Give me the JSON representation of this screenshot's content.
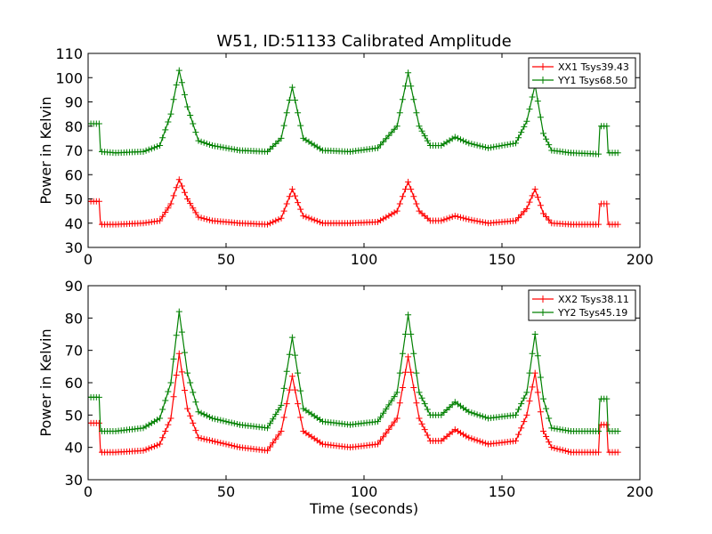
{
  "chart_data": [
    {
      "type": "line",
      "title": "W51, ID:51133 Calibrated Amplitude",
      "xlabel": "",
      "ylabel": "Power in Kelvin",
      "xlim": [
        0,
        200
      ],
      "ylim": [
        30,
        110
      ],
      "xticks": [
        "0",
        "50",
        "100",
        "150",
        "200"
      ],
      "yticks": [
        "30",
        "40",
        "50",
        "60",
        "70",
        "80",
        "90",
        "100",
        "110"
      ],
      "legend_position": "top-right",
      "grid": false,
      "marker": "plus",
      "series": [
        {
          "name": "XX1 Tsys39.43",
          "color": "#ff0000",
          "x": [
            0,
            4,
            4.5,
            10,
            20,
            26,
            30,
            33,
            36,
            40,
            45,
            55,
            65,
            70,
            74,
            78,
            85,
            95,
            105,
            112,
            116,
            120,
            124,
            128,
            133,
            138,
            145,
            155,
            159,
            162,
            165,
            168,
            175,
            185,
            185.5,
            186,
            188,
            188.5,
            192
          ],
          "y": [
            49,
            49,
            39.5,
            39.5,
            40,
            41,
            48,
            58,
            50,
            42.5,
            41,
            40,
            39.5,
            42,
            54,
            43,
            40,
            40,
            40.5,
            45,
            57,
            45,
            41,
            41,
            43,
            41.5,
            40,
            41,
            46,
            54,
            44,
            40,
            39.5,
            39.5,
            48,
            48,
            48,
            39.5,
            39.5
          ]
        },
        {
          "name": "YY1 Tsys68.50",
          "color": "#008000",
          "x": [
            0,
            4,
            4.5,
            10,
            20,
            26,
            30,
            33,
            36,
            40,
            45,
            55,
            65,
            70,
            74,
            78,
            85,
            95,
            105,
            112,
            116,
            120,
            124,
            128,
            133,
            138,
            145,
            155,
            159,
            162,
            165,
            168,
            175,
            185,
            185.5,
            186,
            188,
            188.5,
            192
          ],
          "y": [
            81,
            81,
            69.5,
            69,
            69.5,
            72,
            85,
            103,
            88,
            74,
            72,
            70,
            69.5,
            75,
            96,
            75,
            70,
            69.5,
            71,
            80,
            102,
            80,
            72,
            72,
            75.5,
            73,
            71,
            73,
            82,
            97,
            77,
            70,
            69,
            68.5,
            80,
            80,
            80,
            69,
            69
          ]
        }
      ]
    },
    {
      "type": "line",
      "title": "",
      "xlabel": "Time (seconds)",
      "ylabel": "Power in Kelvin",
      "xlim": [
        0,
        200
      ],
      "ylim": [
        30,
        90
      ],
      "xticks": [
        "0",
        "50",
        "100",
        "150",
        "200"
      ],
      "yticks": [
        "30",
        "40",
        "50",
        "60",
        "70",
        "80",
        "90"
      ],
      "legend_position": "top-right",
      "grid": false,
      "marker": "plus",
      "series": [
        {
          "name": "XX2 Tsys38.11",
          "color": "#ff0000",
          "x": [
            0,
            4,
            4.5,
            10,
            20,
            26,
            30,
            33,
            36,
            40,
            45,
            55,
            65,
            70,
            74,
            78,
            85,
            95,
            105,
            112,
            116,
            120,
            124,
            128,
            133,
            138,
            145,
            155,
            159,
            162,
            165,
            168,
            175,
            185,
            185.5,
            186,
            188,
            188.5,
            192
          ],
          "y": [
            47.5,
            47.5,
            38.5,
            38.5,
            39,
            41,
            49,
            69,
            52,
            43,
            42,
            40,
            39,
            45,
            62,
            45,
            41,
            40,
            41,
            49,
            68,
            49,
            42,
            42,
            45.5,
            43,
            41,
            42,
            50,
            63,
            45,
            40,
            38.5,
            38.5,
            47,
            47,
            47,
            38.5,
            38.5
          ]
        },
        {
          "name": "YY2 Tsys45.19",
          "color": "#008000",
          "x": [
            0,
            4,
            4.5,
            10,
            20,
            26,
            30,
            33,
            36,
            40,
            45,
            55,
            65,
            70,
            74,
            78,
            85,
            95,
            105,
            112,
            116,
            120,
            124,
            128,
            133,
            138,
            145,
            155,
            159,
            162,
            165,
            168,
            175,
            185,
            185.5,
            186,
            188,
            188.5,
            192
          ],
          "y": [
            55.5,
            55.5,
            45,
            45,
            46,
            49,
            60,
            82,
            63,
            51,
            49,
            47,
            46,
            53,
            74,
            52,
            48,
            47,
            48,
            57,
            81,
            57,
            50,
            50,
            54,
            51,
            49,
            50,
            57,
            75,
            55,
            46,
            45,
            45,
            55,
            55,
            55,
            45,
            45
          ]
        }
      ]
    }
  ]
}
